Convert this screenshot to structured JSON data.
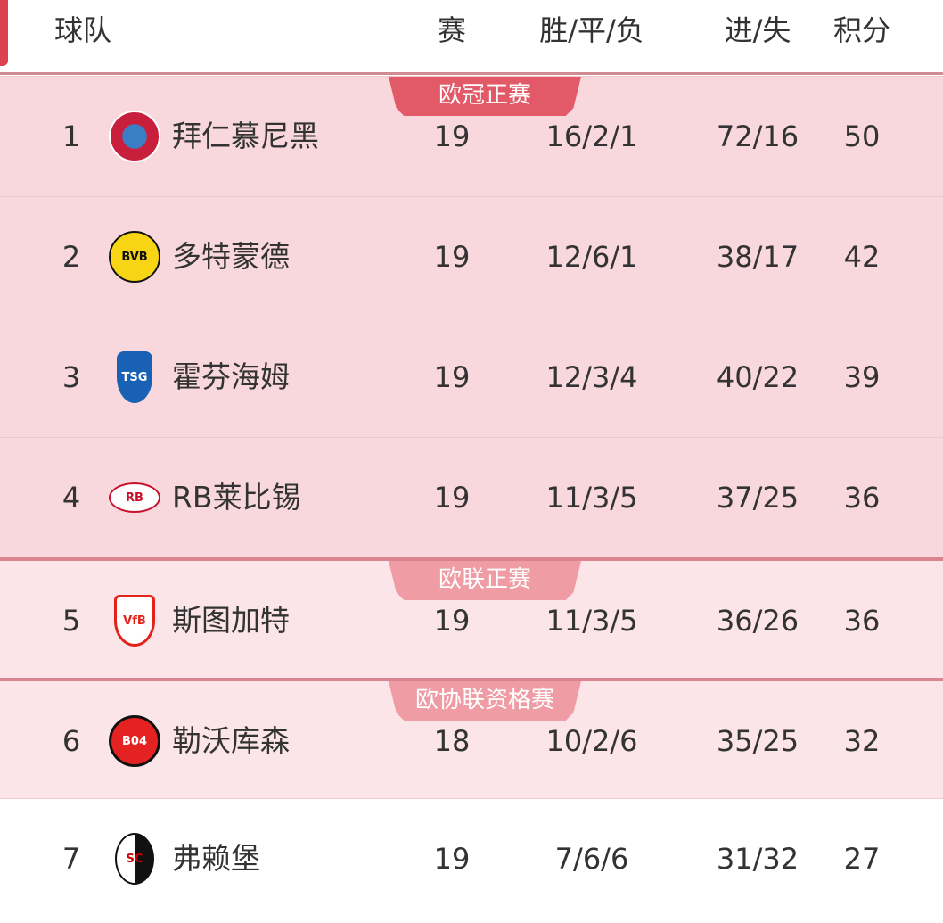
{
  "header": {
    "team": "球队",
    "played": "赛",
    "wdl": "胜/平/负",
    "goals": "进/失",
    "points": "积分"
  },
  "zones": {
    "ucl": "欧冠正赛",
    "uel": "欧联正赛",
    "uecl": "欧协联资格赛"
  },
  "colors": {
    "ucl_bg": "#f8d8dd",
    "uel_bg": "#fbe5e8",
    "badge_ucl": "#e25a68",
    "badge_other": "#ef9ca5"
  },
  "rows": [
    {
      "rank": "1",
      "team": "拜仁慕尼黑",
      "played": "19",
      "wdl": "16/2/1",
      "goals": "72/16",
      "points": "50",
      "logo": "bayern-logo"
    },
    {
      "rank": "2",
      "team": "多特蒙德",
      "played": "19",
      "wdl": "12/6/1",
      "goals": "38/17",
      "points": "42",
      "logo": "bvb-logo"
    },
    {
      "rank": "3",
      "team": "霍芬海姆",
      "played": "19",
      "wdl": "12/3/4",
      "goals": "40/22",
      "points": "39",
      "logo": "hoffenheim-logo"
    },
    {
      "rank": "4",
      "team": "RB莱比锡",
      "played": "19",
      "wdl": "11/3/5",
      "goals": "37/25",
      "points": "36",
      "logo": "leipzig-logo"
    },
    {
      "rank": "5",
      "team": "斯图加特",
      "played": "19",
      "wdl": "11/3/5",
      "goals": "36/26",
      "points": "36",
      "logo": "stuttgart-logo"
    },
    {
      "rank": "6",
      "team": "勒沃库森",
      "played": "18",
      "wdl": "10/2/6",
      "goals": "35/25",
      "points": "32",
      "logo": "leverkusen-logo"
    },
    {
      "rank": "7",
      "team": "弗赖堡",
      "played": "19",
      "wdl": "7/6/6",
      "goals": "31/32",
      "points": "27",
      "logo": "freiburg-logo"
    }
  ]
}
